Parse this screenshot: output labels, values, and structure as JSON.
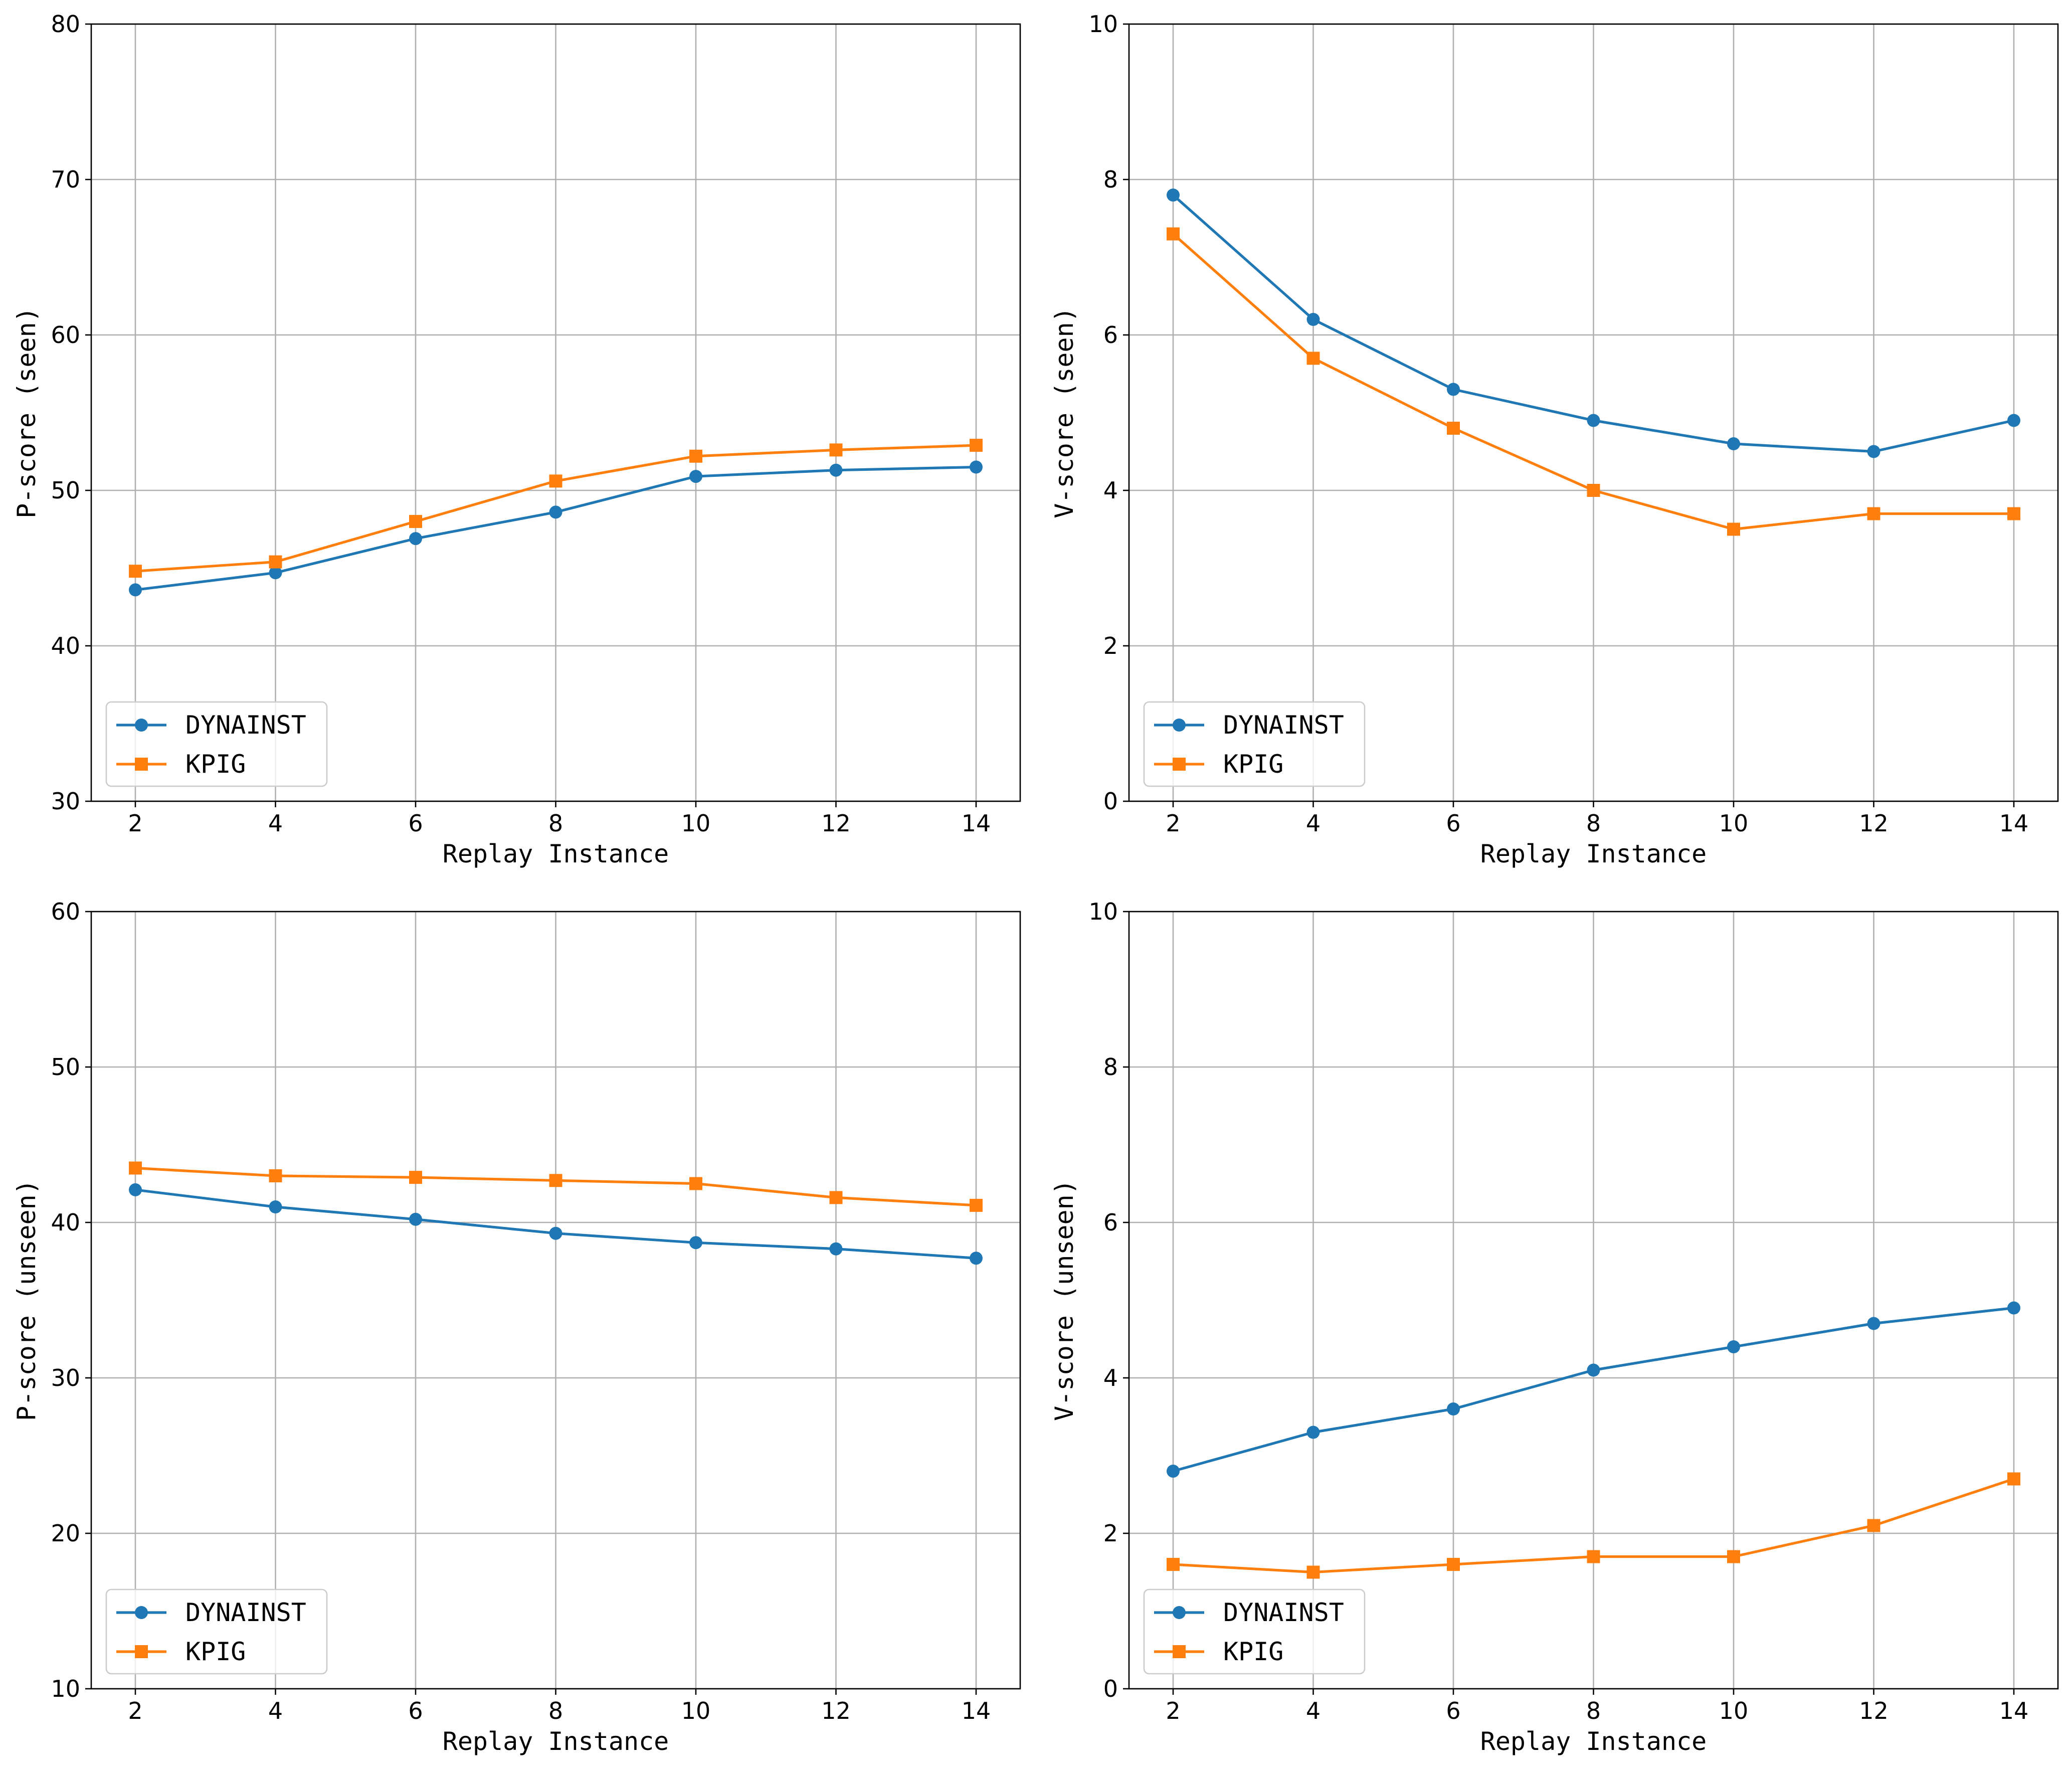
{
  "chart_data": [
    {
      "type": "line",
      "panel": "top-left",
      "title": "",
      "xlabel": "Replay Instance",
      "ylabel": "P-score (seen)",
      "x": [
        2,
        4,
        6,
        8,
        10,
        12,
        14
      ],
      "xticks": [
        "2",
        "4",
        "6",
        "8",
        "10",
        "12",
        "14"
      ],
      "ylim": [
        30,
        80
      ],
      "yticks": [
        "30",
        "40",
        "50",
        "60",
        "70",
        "80"
      ],
      "grid": true,
      "legend_position": "lower-left",
      "series": [
        {
          "name": "DYNAINST",
          "marker": "circle",
          "color": "#1f77b4",
          "values": [
            43.6,
            44.7,
            46.9,
            48.6,
            50.9,
            51.3,
            51.5
          ]
        },
        {
          "name": "KPIG",
          "marker": "square",
          "color": "#ff7f0e",
          "values": [
            44.8,
            45.4,
            48.0,
            50.6,
            52.2,
            52.6,
            52.9
          ]
        }
      ]
    },
    {
      "type": "line",
      "panel": "top-right",
      "title": "",
      "xlabel": "Replay Instance",
      "ylabel": "V-score (seen)",
      "x": [
        2,
        4,
        6,
        8,
        10,
        12,
        14
      ],
      "xticks": [
        "2",
        "4",
        "6",
        "8",
        "10",
        "12",
        "14"
      ],
      "ylim": [
        0,
        10
      ],
      "yticks": [
        "0",
        "2",
        "4",
        "6",
        "8",
        "10"
      ],
      "grid": true,
      "legend_position": "lower-left",
      "series": [
        {
          "name": "DYNAINST",
          "marker": "circle",
          "color": "#1f77b4",
          "values": [
            7.8,
            6.2,
            5.3,
            4.9,
            4.6,
            4.5,
            4.9
          ]
        },
        {
          "name": "KPIG",
          "marker": "square",
          "color": "#ff7f0e",
          "values": [
            7.3,
            5.7,
            4.8,
            4.0,
            3.5,
            3.7,
            3.7
          ]
        }
      ]
    },
    {
      "type": "line",
      "panel": "bottom-left",
      "title": "",
      "xlabel": "Replay Instance",
      "ylabel": "P-score (unseen)",
      "x": [
        2,
        4,
        6,
        8,
        10,
        12,
        14
      ],
      "xticks": [
        "2",
        "4",
        "6",
        "8",
        "10",
        "12",
        "14"
      ],
      "ylim": [
        10,
        60
      ],
      "yticks": [
        "10",
        "20",
        "30",
        "40",
        "50",
        "60"
      ],
      "grid": true,
      "legend_position": "lower-left",
      "series": [
        {
          "name": "DYNAINST",
          "marker": "circle",
          "color": "#1f77b4",
          "values": [
            42.1,
            41.0,
            40.2,
            39.3,
            38.7,
            38.3,
            37.7
          ]
        },
        {
          "name": "KPIG",
          "marker": "square",
          "color": "#ff7f0e",
          "values": [
            43.5,
            43.0,
            42.9,
            42.7,
            42.5,
            41.6,
            41.1
          ]
        }
      ]
    },
    {
      "type": "line",
      "panel": "bottom-right",
      "title": "",
      "xlabel": "Replay Instance",
      "ylabel": "V-score (unseen)",
      "x": [
        2,
        4,
        6,
        8,
        10,
        12,
        14
      ],
      "xticks": [
        "2",
        "4",
        "6",
        "8",
        "10",
        "12",
        "14"
      ],
      "ylim": [
        0,
        10
      ],
      "yticks": [
        "0",
        "2",
        "4",
        "6",
        "8",
        "10"
      ],
      "grid": true,
      "legend_position": "lower-left",
      "series": [
        {
          "name": "DYNAINST",
          "marker": "circle",
          "color": "#1f77b4",
          "values": [
            2.8,
            3.3,
            3.6,
            4.1,
            4.4,
            4.7,
            4.9
          ]
        },
        {
          "name": "KPIG",
          "marker": "square",
          "color": "#ff7f0e",
          "values": [
            1.6,
            1.5,
            1.6,
            1.7,
            1.7,
            2.1,
            2.7
          ]
        }
      ]
    }
  ]
}
